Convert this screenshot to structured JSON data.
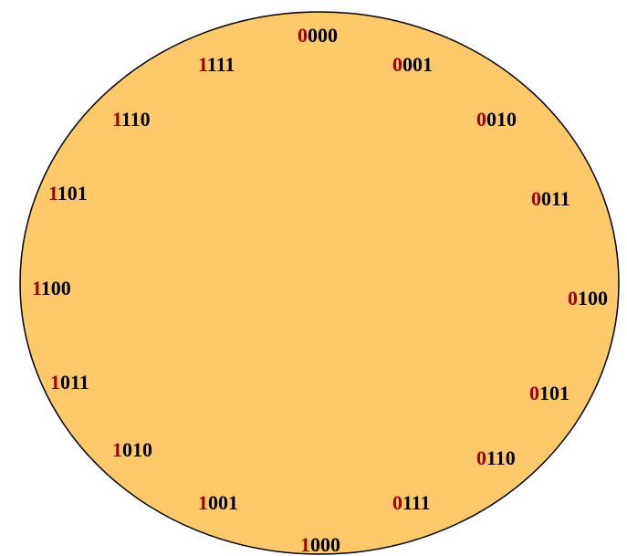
{
  "colors": {
    "circle_fill": "#fdc96a",
    "circle_stroke": "#000000",
    "msb_text": "#a00000",
    "rest_text": "#000000"
  },
  "labels": [
    {
      "msb": "0",
      "rest": "000"
    },
    {
      "msb": "0",
      "rest": "001"
    },
    {
      "msb": "0",
      "rest": "010"
    },
    {
      "msb": "0",
      "rest": "011"
    },
    {
      "msb": "0",
      "rest": "100"
    },
    {
      "msb": "0",
      "rest": "101"
    },
    {
      "msb": "0",
      "rest": "110"
    },
    {
      "msb": "0",
      "rest": "111"
    },
    {
      "msb": "1",
      "rest": "000"
    },
    {
      "msb": "1",
      "rest": "001"
    },
    {
      "msb": "1",
      "rest": "010"
    },
    {
      "msb": "1",
      "rest": "011"
    },
    {
      "msb": "1",
      "rest": "100"
    },
    {
      "msb": "1",
      "rest": "101"
    },
    {
      "msb": "1",
      "rest": "110"
    },
    {
      "msb": "1",
      "rest": "111"
    }
  ]
}
